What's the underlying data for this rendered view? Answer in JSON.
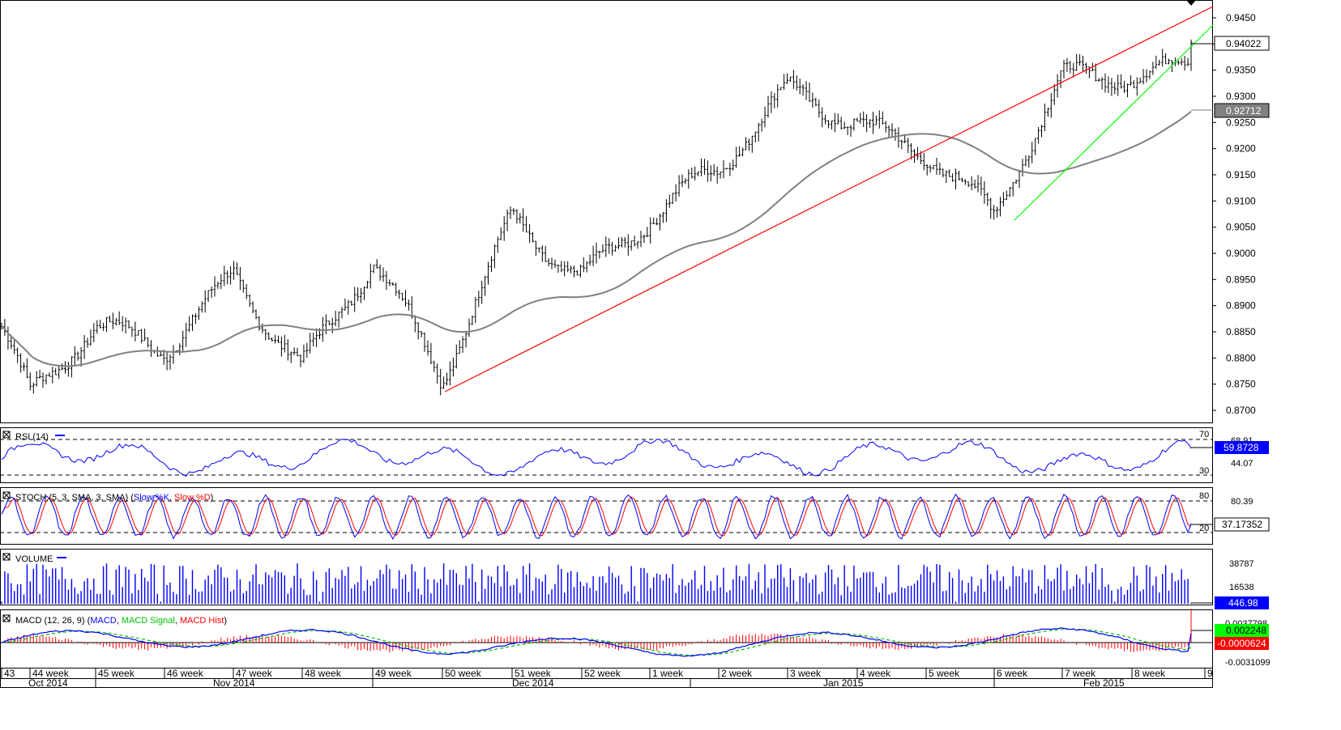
{
  "price_panel": {
    "y_ticks": [
      "0.9450",
      "0.9400",
      "0.9350",
      "0.9300",
      "0.9250",
      "0.9200",
      "0.9150",
      "0.9100",
      "0.9050",
      "0.9000",
      "0.8950",
      "0.8900",
      "0.8850",
      "0.8800",
      "0.8750",
      "0.8700"
    ],
    "last_price_label": "0.94022",
    "ma_label": "0.92712"
  },
  "rsi_panel": {
    "title": "RSI (14)",
    "levels": [
      "70",
      "30"
    ],
    "right_labels": [
      "68.91",
      "44.07"
    ],
    "current_label": "59.8728"
  },
  "stoch_panel": {
    "title_prefix": "STOCH (5, 3, SMA, 3, SMA) (",
    "k_name": "Slow %K",
    "d_name": "Slow %D",
    "title_suffix": ")",
    "levels": [
      "80",
      "20"
    ],
    "right_label": "80.39",
    "current_label": "37.17352"
  },
  "volume_panel": {
    "title": "VOLUME",
    "right_labels": [
      "38787",
      "16538"
    ],
    "current_label": "446.98"
  },
  "macd_panel": {
    "title_prefix": "MACD (12, 26, 9) (",
    "macd_name": "MACD",
    "signal_name": "MACD Signal",
    "hist_name": "MACD Hist",
    "title_suffix": ")",
    "right_labels": [
      "0.0037798",
      "-0.0031099"
    ],
    "macd_label": "0.002248",
    "hist_label": "-0.0000624"
  },
  "time_axis": {
    "weeks": [
      "43",
      "44 week",
      "45 week",
      "46 week",
      "47 week",
      "48 week",
      "49 week",
      "50 week",
      "51 week",
      "52 week",
      "1 week",
      "2 week",
      "3 week",
      "4 week",
      "5 week",
      "6 week",
      "7 week",
      "8 week",
      "9"
    ],
    "months": [
      "Oct 2014",
      "Nov 2014",
      "Dec 2014",
      "Jan 2015",
      "Feb 2015"
    ]
  },
  "colors": {
    "bars": "#000000",
    "moving_average": "#808080",
    "trendline_red": "#ff0000",
    "trendline_green": "#00ff00",
    "rsi": "#0000ff",
    "stoch_k": "#0000ff",
    "stoch_d": "#ff0000",
    "volume": "#0000ff",
    "macd": "#0000ff",
    "macd_signal": "#00c000",
    "macd_hist": "#ff0000"
  },
  "chart_data": {
    "type": "ohlc",
    "timeframe_note": "4-hour bars, Oct 2014 - Feb 2015",
    "ylim": [
      0.8675,
      0.9475
    ],
    "price_path_anchors": [
      {
        "week": "43",
        "price": 0.886
      },
      {
        "week": "44 week",
        "price": 0.871
      },
      {
        "week": "45 week",
        "price": 0.883
      },
      {
        "week": "46 week",
        "price": 0.882
      },
      {
        "week": "47 week",
        "price": 0.899
      },
      {
        "week": "48 week",
        "price": 0.879
      },
      {
        "week": "49 week",
        "price": 0.896
      },
      {
        "week": "50 week",
        "price": 0.874
      },
      {
        "week": "51 week",
        "price": 0.909
      },
      {
        "week": "52 week",
        "price": 0.898
      },
      {
        "week": "1 week",
        "price": 0.906
      },
      {
        "week": "2 week",
        "price": 0.913
      },
      {
        "week": "3 week",
        "price": 0.931
      },
      {
        "week": "4 week",
        "price": 0.928
      },
      {
        "week": "5 week",
        "price": 0.921
      },
      {
        "week": "6 week",
        "price": 0.905
      },
      {
        "week": "7 week",
        "price": 0.931
      },
      {
        "week": "8 week",
        "price": 0.935
      },
      {
        "week": "9",
        "price": 0.9402
      }
    ],
    "last_price": 0.94022,
    "moving_average_last": 0.92712,
    "rsi_last": 59.8728,
    "stoch_last": 37.17352,
    "volume_last": 446.98,
    "macd_last": 0.002248,
    "macd_hist_last": -6.24e-05
  }
}
